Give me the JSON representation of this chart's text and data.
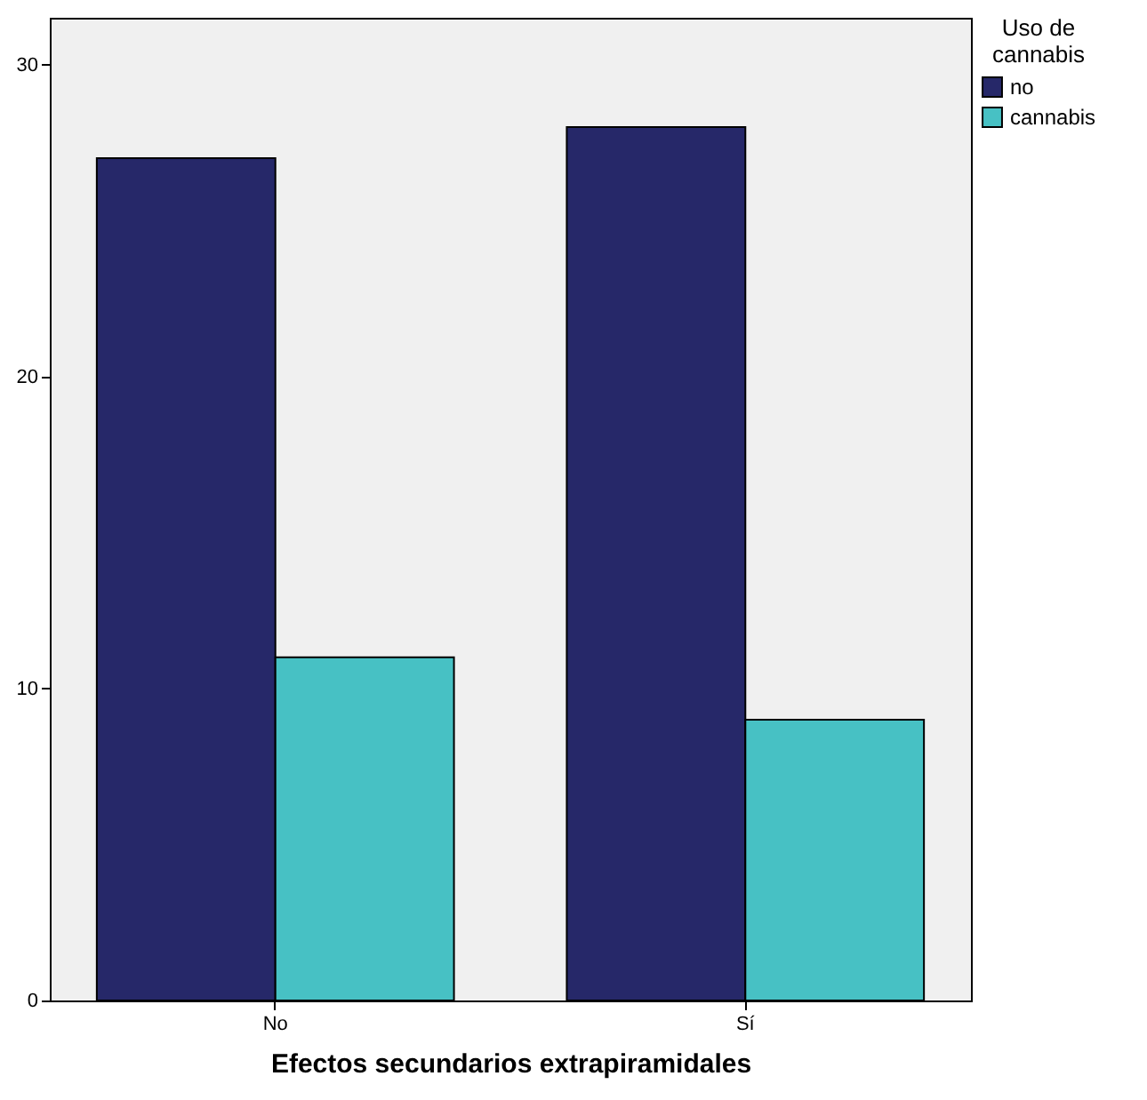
{
  "chart_data": {
    "type": "bar",
    "xlabel": "Efectos secundarios extrapiramidales",
    "legend_title": "Uso de cannabis",
    "categories": [
      "No",
      "Sí"
    ],
    "series": [
      {
        "name": "no",
        "color": "#262869",
        "values": [
          27,
          28
        ]
      },
      {
        "name": "cannabis",
        "color": "#47c1c4",
        "values": [
          11,
          9
        ]
      }
    ],
    "ylim": [
      0,
      31.5
    ],
    "yticks": [
      0,
      10,
      20,
      30
    ],
    "grid": false,
    "legend": "top right"
  }
}
